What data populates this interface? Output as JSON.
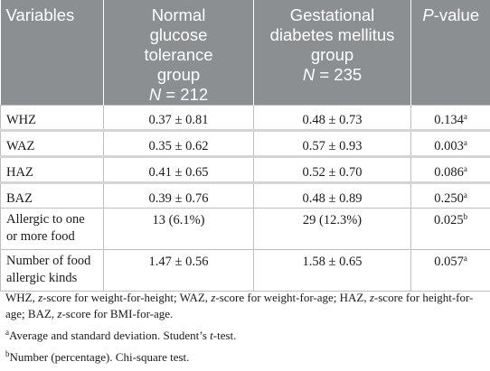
{
  "table": {
    "headers": {
      "variables": "Variables",
      "ngt": [
        "Normal",
        "glucose",
        "tolerance",
        "group"
      ],
      "ngt_n": "N = 212",
      "gdm": [
        "Gestational",
        "diabetes mellitus",
        "group"
      ],
      "gdm_n": "N = 235",
      "p_italic": "P",
      "p_rest": "-value"
    },
    "rows": [
      {
        "label": "WHZ",
        "ngt": "0.37 ± 0.81",
        "gdm": "0.48 ± 0.73",
        "p": "0.134",
        "sup": "a"
      },
      {
        "label": "WAZ",
        "ngt": "0.35 ± 0.62",
        "gdm": "0.57 ± 0.93",
        "p": "0.003",
        "sup": "a"
      },
      {
        "label": "HAZ",
        "ngt": "0.41 ± 0.65",
        "gdm": "0.52 ± 0.70",
        "p": "0.086",
        "sup": "a"
      },
      {
        "label": "BAZ",
        "ngt": "0.39 ± 0.76",
        "gdm": "0.48 ± 0.89",
        "p": "0.250",
        "sup": "a"
      },
      {
        "label_lines": [
          "Allergic to one",
          "or more food"
        ],
        "ngt": "13 (6.1%)",
        "gdm": "29 (12.3%)",
        "p": "0.025",
        "sup": "b"
      },
      {
        "label_lines": [
          "Number of food",
          "allergic kinds"
        ],
        "ngt": "1.47 ± 0.56",
        "gdm": "1.58 ± 0.65",
        "p": "0.057",
        "sup": "a"
      }
    ]
  },
  "footnotes": {
    "abbrev": {
      "whz": "WHZ, ",
      "z1": "z",
      "t1": "-score for weight-for-height; WAZ, ",
      "z2": "z",
      "t2": "-score for weight-for-age; HAZ, ",
      "z3": "z",
      "t3": "-score for height-for-age; BAZ, ",
      "z4": "z",
      "t4": "-score for BMI-for-age."
    },
    "a_mark": "a",
    "a_text_1": "Average and standard deviation. Student’s ",
    "a_t": "t",
    "a_text_2": "-test.",
    "b_mark": "b",
    "b_text": "Number (percentage). Chi-square test."
  }
}
